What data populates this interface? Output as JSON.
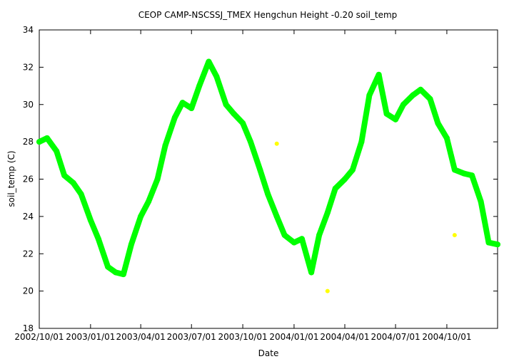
{
  "chart_data": {
    "type": "scatter",
    "title": "CEOP CAMP-NSCSSJ_TMEX Hengchun Height -0.20 soil_temp",
    "xlabel": "Date",
    "ylabel": "soil_temp (C)",
    "xlim": [
      "2002-10-01",
      "2004-12-31"
    ],
    "ylim": [
      18,
      34
    ],
    "x_tick_labels": [
      "2002/10/01",
      "2003/01/01",
      "2003/04/01",
      "2003/07/01",
      "2003/10/01",
      "2004/01/01",
      "2004/04/01",
      "2004/07/01",
      "2004/10/01"
    ],
    "y_ticks": [
      18,
      20,
      22,
      24,
      26,
      28,
      30,
      32,
      34
    ],
    "grid": false,
    "legend": "none",
    "series": [
      {
        "color": "#00ff00",
        "style": "lines+points",
        "x": [
          "2002-10-01",
          "2002-10-15",
          "2002-11-01",
          "2002-11-15",
          "2002-12-01",
          "2002-12-15",
          "2003-01-01",
          "2003-01-15",
          "2003-02-01",
          "2003-02-15",
          "2003-03-01",
          "2003-03-15",
          "2003-04-01",
          "2003-04-15",
          "2003-05-01",
          "2003-05-15",
          "2003-06-01",
          "2003-06-15",
          "2003-07-01",
          "2003-07-15",
          "2003-08-01",
          "2003-08-15",
          "2003-09-01",
          "2003-09-15",
          "2003-10-01",
          "2003-10-15",
          "2003-11-01",
          "2003-11-15",
          "2003-12-01",
          "2003-12-15",
          "2004-01-01",
          "2004-01-15",
          "2004-02-01",
          "2004-02-15",
          "2004-03-01",
          "2004-03-15",
          "2004-04-01",
          "2004-04-15",
          "2004-05-01",
          "2004-05-15",
          "2004-06-01",
          "2004-06-15",
          "2004-07-01",
          "2004-07-15",
          "2004-08-01",
          "2004-08-15",
          "2004-09-01",
          "2004-09-15",
          "2004-10-01",
          "2004-10-15",
          "2004-11-01",
          "2004-11-15",
          "2004-12-01",
          "2004-12-15",
          "2004-12-31"
        ],
        "y": [
          28.0,
          28.2,
          27.5,
          26.2,
          25.8,
          25.2,
          23.8,
          22.8,
          21.3,
          21.0,
          20.9,
          22.5,
          24.0,
          24.8,
          26.0,
          27.8,
          29.3,
          30.1,
          29.8,
          31.0,
          32.3,
          31.5,
          30.0,
          29.5,
          29.0,
          28.0,
          26.5,
          25.2,
          24.0,
          23.0,
          22.6,
          22.8,
          21.0,
          23.0,
          24.2,
          25.5,
          26.0,
          26.5,
          28.0,
          30.5,
          31.6,
          29.5,
          29.2,
          30.0,
          30.5,
          30.8,
          30.3,
          29.0,
          28.2,
          26.5,
          26.3,
          26.2,
          24.8,
          22.6,
          22.5
        ]
      },
      {
        "color": "#ffff00",
        "style": "points",
        "x": [
          "2003-12-01",
          "2004-03-01",
          "2004-10-15"
        ],
        "y": [
          27.9,
          20.0,
          23.0
        ]
      }
    ]
  }
}
